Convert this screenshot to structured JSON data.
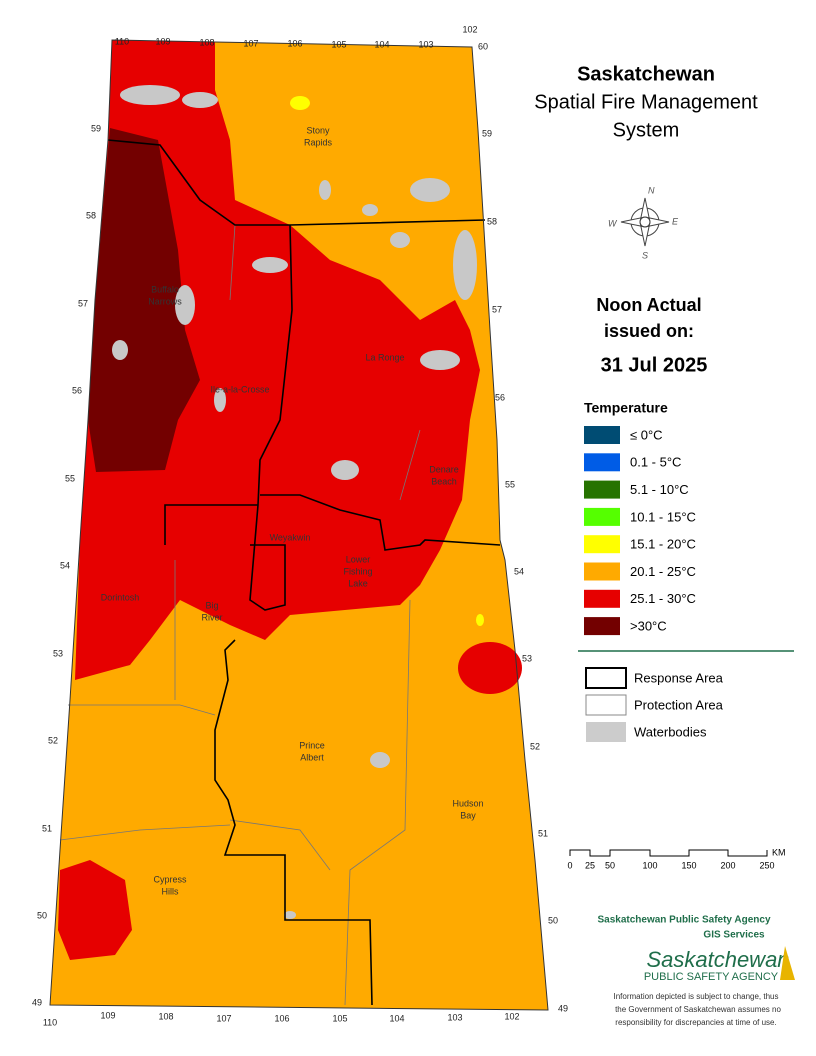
{
  "header": {
    "title": [
      "Saskatchewan",
      "Spatial Fire Management",
      "System"
    ]
  },
  "issue": {
    "lines": [
      "Noon Actual",
      "issued on:"
    ],
    "date": "31 Jul 2025"
  },
  "compass": {
    "n": "N",
    "s": "S",
    "e": "E",
    "w": "W"
  },
  "legend": {
    "title": "Temperature",
    "items": [
      {
        "label": "≤ 0°C",
        "color": "#004c73"
      },
      {
        "label": "0.1 - 5°C",
        "color": "#005ce6"
      },
      {
        "label": "5.1 - 10°C",
        "color": "#267300"
      },
      {
        "label": "10.1 - 15°C",
        "color": "#55ff00"
      },
      {
        "label": "15.1 - 20°C",
        "color": "#ffff00"
      },
      {
        "label": "20.1 - 25°C",
        "color": "#ffaa00"
      },
      {
        "label": "25.1 - 30°C",
        "color": "#e60000"
      },
      {
        "label": ">30°C",
        "color": "#730000"
      }
    ],
    "boundaries": [
      "Response Area",
      "Protection Area",
      "Waterbodies"
    ]
  },
  "scale": {
    "ticks": [
      "0",
      "25",
      "50",
      "100",
      "150",
      "200",
      "250"
    ],
    "unit": "KM"
  },
  "map": {
    "longitude_top": [
      "110",
      "109",
      "108",
      "107",
      "106",
      "105",
      "104",
      "103",
      "102"
    ],
    "longitude_bottom": [
      "110",
      "109",
      "108",
      "107",
      "106",
      "105",
      "104",
      "103",
      "102"
    ],
    "latitude_left": [
      "59",
      "58",
      "57",
      "56",
      "55",
      "54",
      "53",
      "52",
      "51",
      "50",
      "49"
    ],
    "latitude_right": [
      "60",
      "59",
      "58",
      "57",
      "56",
      "55",
      "54",
      "53",
      "52",
      "51",
      "50",
      "49"
    ],
    "places": [
      [
        "Stony",
        "Rapids"
      ],
      [
        "Buffalo",
        "Narrows"
      ],
      [
        "Ile-a-la-Crosse"
      ],
      [
        "La Ronge"
      ],
      [
        "Denare",
        "Beach"
      ],
      [
        "Weyakwin"
      ],
      [
        "Lower",
        "Fishing",
        "Lake"
      ],
      [
        "Dorintosh"
      ],
      [
        "Big",
        "River"
      ],
      [
        "Prince",
        "Albert"
      ],
      [
        "Hudson",
        "Bay"
      ],
      [
        "Cypress",
        "Hills"
      ]
    ]
  },
  "footer": {
    "agency": "Saskatchewan Public Safety Agency",
    "unit": "GIS  Services",
    "logo": [
      "Saskatchewan",
      "PUBLIC SAFETY AGENCY"
    ],
    "disclaimer": [
      "Information depicted is subject to change, thus",
      "the Government of Saskatchewan assumes no",
      "responsibility for discrepancies at time of use."
    ]
  }
}
